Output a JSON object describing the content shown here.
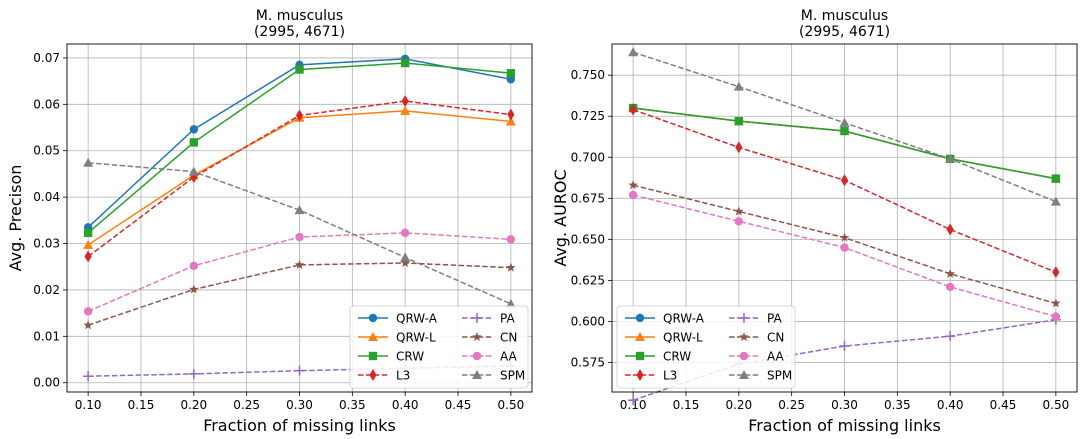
{
  "chart_data": [
    {
      "type": "line",
      "title": "M. musculus\n(2995, 4671)",
      "xlabel": "Fraction of missing links",
      "ylabel": "Avg. Precison",
      "x": [
        0.1,
        0.2,
        0.3,
        0.4,
        0.5
      ],
      "xlim": [
        0.08,
        0.52
      ],
      "ylim": [
        -0.002,
        0.073
      ],
      "xticks": [
        "0.10",
        "0.15",
        "0.20",
        "0.25",
        "0.30",
        "0.35",
        "0.40",
        "0.45",
        "0.50"
      ],
      "yticks": [
        "0.00",
        "0.01",
        "0.02",
        "0.03",
        "0.04",
        "0.05",
        "0.06",
        "0.07"
      ],
      "grid": true,
      "legend_position": "lower-right",
      "series": [
        {
          "name": "QRW-A",
          "color": "#1f77b4",
          "marker": "circle",
          "dash": "solid",
          "values": [
            0.0335,
            0.0546,
            0.0685,
            0.0698,
            0.0654
          ]
        },
        {
          "name": "QRW-L",
          "color": "#ff7f0e",
          "marker": "triangle",
          "dash": "solid",
          "values": [
            0.0297,
            0.0447,
            0.0571,
            0.0586,
            0.0563
          ]
        },
        {
          "name": "CRW",
          "color": "#2ca02c",
          "marker": "square",
          "dash": "solid",
          "values": [
            0.0323,
            0.0518,
            0.0675,
            0.0689,
            0.0667
          ]
        },
        {
          "name": "L3",
          "color": "#d62728",
          "marker": "diamond",
          "dash": "dashed",
          "values": [
            0.0272,
            0.0443,
            0.0576,
            0.0607,
            0.0578
          ]
        },
        {
          "name": "PA",
          "color": "#9467bd",
          "marker": "plus",
          "dash": "dashed",
          "values": [
            0.0014,
            0.0019,
            0.0026,
            0.0031,
            0.0036
          ]
        },
        {
          "name": "CN",
          "color": "#8c564b",
          "marker": "star",
          "dash": "dashed",
          "values": [
            0.0124,
            0.0201,
            0.0254,
            0.0258,
            0.0248
          ]
        },
        {
          "name": "AA",
          "color": "#e377c2",
          "marker": "circle",
          "dash": "dashed",
          "values": [
            0.0154,
            0.0252,
            0.0314,
            0.0323,
            0.0309
          ]
        },
        {
          "name": "SPM",
          "color": "#7f7f7f",
          "marker": "triangle",
          "dash": "dashed",
          "values": [
            0.0474,
            0.0455,
            0.0372,
            0.027,
            0.017
          ]
        }
      ]
    },
    {
      "type": "line",
      "title": "M. musculus\n(2995, 4671)",
      "xlabel": "Fraction of missing links",
      "ylabel": "Avg. AUROC",
      "x": [
        0.1,
        0.2,
        0.3,
        0.4,
        0.5
      ],
      "xlim": [
        0.08,
        0.52
      ],
      "ylim": [
        0.557,
        0.769
      ],
      "xticks": [
        "0.10",
        "0.15",
        "0.20",
        "0.25",
        "0.30",
        "0.35",
        "0.40",
        "0.45",
        "0.50"
      ],
      "yticks": [
        "0.575",
        "0.600",
        "0.625",
        "0.650",
        "0.675",
        "0.700",
        "0.725",
        "0.750"
      ],
      "grid": true,
      "legend_position": "lower-left",
      "series": [
        {
          "name": "QRW-A",
          "color": "#1f77b4",
          "marker": "circle",
          "dash": "solid",
          "values": [
            0.73,
            0.722,
            0.716,
            0.699,
            0.687
          ]
        },
        {
          "name": "QRW-L",
          "color": "#ff7f0e",
          "marker": "triangle",
          "dash": "solid",
          "values": [
            0.73,
            0.722,
            0.716,
            0.699,
            0.687
          ]
        },
        {
          "name": "CRW",
          "color": "#2ca02c",
          "marker": "square",
          "dash": "solid",
          "values": [
            0.73,
            0.722,
            0.716,
            0.699,
            0.687
          ]
        },
        {
          "name": "L3",
          "color": "#d62728",
          "marker": "diamond",
          "dash": "dashed",
          "values": [
            0.729,
            0.706,
            0.686,
            0.656,
            0.63
          ]
        },
        {
          "name": "PA",
          "color": "#9467bd",
          "marker": "plus",
          "dash": "dashed",
          "values": [
            0.552,
            0.574,
            0.585,
            0.591,
            0.601
          ]
        },
        {
          "name": "CN",
          "color": "#8c564b",
          "marker": "star",
          "dash": "dashed",
          "values": [
            0.683,
            0.667,
            0.651,
            0.629,
            0.611
          ]
        },
        {
          "name": "AA",
          "color": "#e377c2",
          "marker": "circle",
          "dash": "dashed",
          "values": [
            0.677,
            0.661,
            0.645,
            0.621,
            0.603
          ]
        },
        {
          "name": "SPM",
          "color": "#7f7f7f",
          "marker": "triangle",
          "dash": "dashed",
          "values": [
            0.764,
            0.743,
            0.721,
            0.699,
            0.673
          ]
        }
      ]
    }
  ]
}
